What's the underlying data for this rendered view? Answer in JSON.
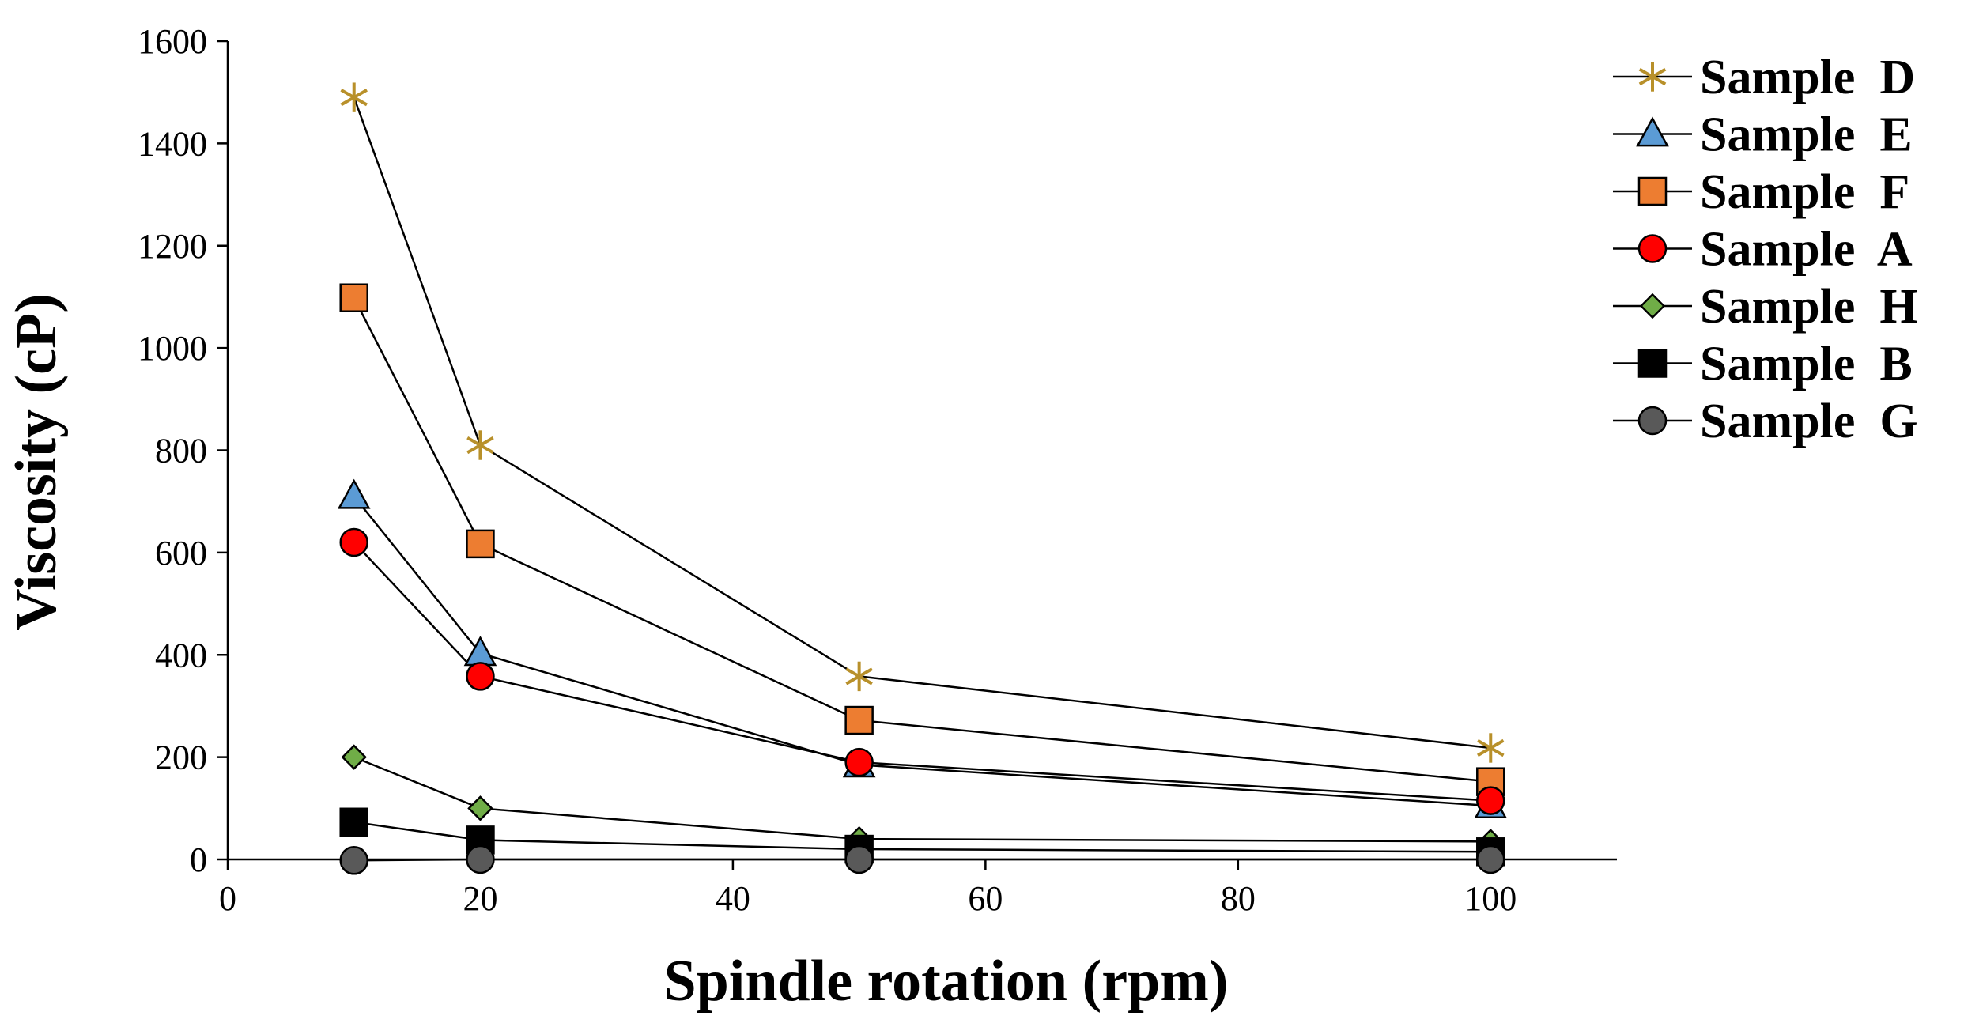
{
  "chart_data": {
    "type": "line",
    "title": "",
    "xlabel": "Spindle rotation (rpm)",
    "ylabel": "Viscosity (cP)",
    "xlim": [
      0,
      110
    ],
    "ylim": [
      0,
      1600
    ],
    "xticks": [
      0,
      20,
      40,
      60,
      80,
      100
    ],
    "yticks": [
      0,
      200,
      400,
      600,
      800,
      1000,
      1200,
      1400,
      1600
    ],
    "grid": false,
    "legend_position": "right",
    "x": [
      10,
      20,
      50,
      100
    ],
    "series": [
      {
        "name": "Sample  D",
        "marker": "star",
        "color": "#b8902a",
        "values": [
          1490,
          810,
          358,
          218
        ]
      },
      {
        "name": "Sample  E",
        "marker": "triangle",
        "color": "#5b9bd5",
        "values": [
          710,
          403,
          185,
          105
        ]
      },
      {
        "name": "Sample  F",
        "marker": "square",
        "color": "#ed7d31",
        "values": [
          1098,
          617,
          272,
          152
        ]
      },
      {
        "name": "Sample  A",
        "marker": "circle",
        "color": "#ff0000",
        "values": [
          620,
          358,
          190,
          115
        ]
      },
      {
        "name": "Sample  H",
        "marker": "diamond",
        "color": "#70ad47",
        "values": [
          200,
          100,
          40,
          35
        ]
      },
      {
        "name": "Sample  B",
        "marker": "square",
        "color": "#000000",
        "values": [
          73,
          38,
          20,
          15
        ]
      },
      {
        "name": "Sample  G",
        "marker": "circle",
        "color": "#595959",
        "values": [
          -2,
          0,
          0,
          0
        ]
      }
    ]
  }
}
